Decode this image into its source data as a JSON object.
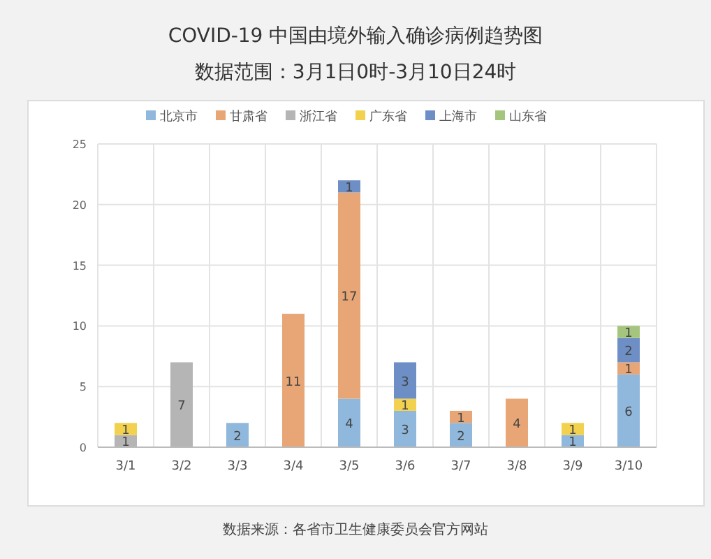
{
  "chart_data": {
    "type": "bar",
    "title": "COVID-19 中国由境外输入确诊病例趋势图",
    "subtitle": "数据范围：3月1日0时-3月10日24时",
    "categories": [
      "3/1",
      "3/2",
      "3/3",
      "3/4",
      "3/5",
      "3/6",
      "3/7",
      "3/8",
      "3/9",
      "3/10"
    ],
    "series": [
      {
        "name": "北京市",
        "color": "#8fb8dc",
        "values": [
          null,
          null,
          2,
          null,
          4,
          3,
          2,
          null,
          1,
          6
        ]
      },
      {
        "name": "甘肃省",
        "color": "#e8a676",
        "values": [
          null,
          null,
          null,
          11,
          17,
          null,
          1,
          4,
          null,
          1
        ]
      },
      {
        "name": "浙江省",
        "color": "#b5b5b5",
        "values": [
          1,
          7,
          null,
          null,
          null,
          null,
          null,
          null,
          null,
          null
        ]
      },
      {
        "name": "广东省",
        "color": "#f2d14f",
        "values": [
          1,
          null,
          null,
          null,
          null,
          1,
          null,
          null,
          1,
          null
        ]
      },
      {
        "name": "上海市",
        "color": "#6e8fc6",
        "values": [
          null,
          null,
          null,
          null,
          1,
          3,
          null,
          null,
          null,
          2
        ]
      },
      {
        "name": "山东省",
        "color": "#a5c57f",
        "values": [
          null,
          null,
          null,
          null,
          null,
          null,
          null,
          null,
          null,
          1
        ]
      }
    ],
    "stacked": true,
    "ylim": [
      0,
      25
    ],
    "yticks": [
      0,
      5,
      10,
      15,
      20,
      25
    ],
    "grid": true,
    "legend": "top",
    "data_labels": true,
    "annotations": [
      "数据来源：各省市卫生健康委员会官方网站"
    ]
  }
}
